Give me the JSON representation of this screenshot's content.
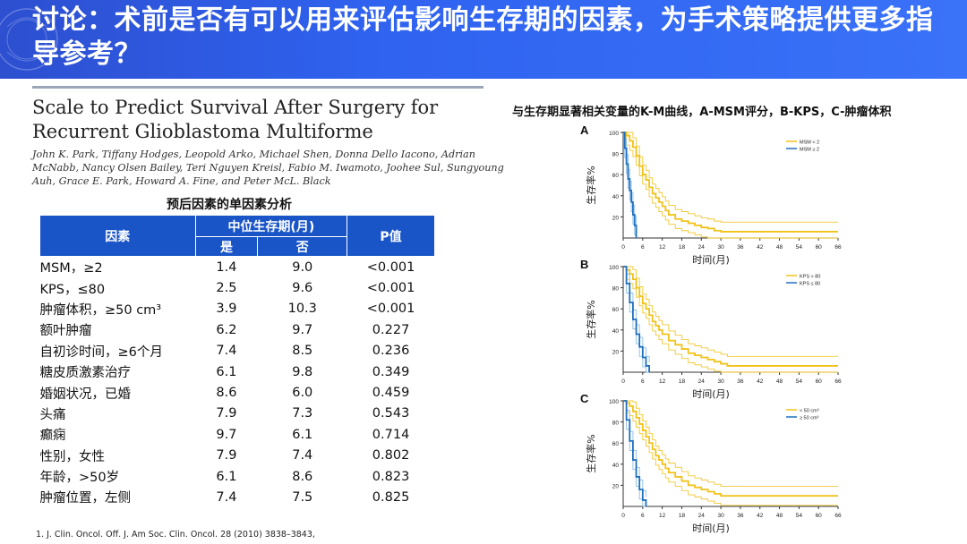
{
  "banner": {
    "title": "讨论：术前是否有可以用来评估影响生存期的因素，为手术策略提供更多指导参考？"
  },
  "paper": {
    "title": "Scale to Predict Survival After Surgery for Recurrent Glioblastoma Multiforme",
    "authors": "John K. Park, Tiffany Hodges, Leopold Arko, Michael Shen, Donna Dello Iacono, Adrian McNabb, Nancy Olsen Bailey, Teri Nguyen Kreisl, Fabio M. Iwamoto, Joohee Sul, Sungyoung Auh, Grace E. Park, Howard A. Fine, and Peter McL. Black"
  },
  "table": {
    "title": "预后因素的单因素分析",
    "col_factor": "因素",
    "col_median": "中位生存期(月)",
    "col_yes": "是",
    "col_no": "否",
    "col_p": "P值",
    "rows": [
      {
        "factor": "MSM，≥2",
        "yes": "1.4",
        "no": "9.0",
        "p": "<0.001"
      },
      {
        "factor": "KPS，≤80",
        "yes": "2.5",
        "no": "9.6",
        "p": "<0.001"
      },
      {
        "factor": "肿瘤体积，≥50 cm³",
        "yes": "3.9",
        "no": "10.3",
        "p": "<0.001"
      },
      {
        "factor": "额叶肿瘤",
        "yes": "6.2",
        "no": "9.7",
        "p": "0.227"
      },
      {
        "factor": "自初诊时间，≥6个月",
        "yes": "7.4",
        "no": "8.5",
        "p": "0.236"
      },
      {
        "factor": "糖皮质激素治疗",
        "yes": "6.1",
        "no": "9.8",
        "p": "0.349"
      },
      {
        "factor": "婚姻状况，已婚",
        "yes": "8.6",
        "no": "6.0",
        "p": "0.459"
      },
      {
        "factor": "头痛",
        "yes": "7.9",
        "no": "7.3",
        "p": "0.543"
      },
      {
        "factor": "癫痫",
        "yes": "9.7",
        "no": "6.1",
        "p": "0.714"
      },
      {
        "factor": "性别，女性",
        "yes": "7.9",
        "no": "7.4",
        "p": "0.802"
      },
      {
        "factor": "年龄，>50岁",
        "yes": "6.1",
        "no": "8.6",
        "p": "0.823"
      },
      {
        "factor": "肿瘤位置，左侧",
        "yes": "7.4",
        "no": "7.5",
        "p": "0.825"
      }
    ]
  },
  "reference": "1.   J. Clin. Oncol. Off. J. Am Soc. Clin. Oncol. 28 (2010) 3838–3843,",
  "km": {
    "title": "与生存期显著相关变量的K-M曲线，A-MSM评分，B-KPS，C-肿瘤体积",
    "ylabel": "生存率%",
    "xlabel": "时间(月)",
    "colors": {
      "yellow": "#f2c21a",
      "blue": "#1f6fbf",
      "lightblue": "#7fb8e6"
    },
    "x_ticks": [
      "0",
      "6",
      "12",
      "18",
      "24",
      "30",
      "36",
      "42",
      "48",
      "54",
      "60",
      "66"
    ],
    "y_ticks": [
      "100",
      "80",
      "60",
      "40",
      "20"
    ]
  },
  "chart_data": [
    {
      "type": "line",
      "panel": "A",
      "xlim": [
        0,
        66
      ],
      "ylim": [
        0,
        100
      ],
      "legend": [
        "MSM < 2",
        "MSM ≥ 2"
      ],
      "series": [
        {
          "name": "MSM < 2",
          "x": [
            0,
            1,
            2,
            3,
            4,
            5,
            6,
            7,
            8,
            9,
            10,
            11,
            12,
            13,
            14,
            16,
            18,
            20,
            22,
            24,
            26,
            28,
            30,
            66
          ],
          "values": [
            100,
            97,
            92,
            86,
            78,
            68,
            60,
            55,
            48,
            42,
            38,
            34,
            30,
            26,
            22,
            18,
            16,
            14,
            12,
            10,
            9,
            7,
            6,
            6
          ]
        },
        {
          "name": "MSM ≥ 2",
          "x": [
            0,
            0.5,
            1,
            1.5,
            2,
            2.5,
            3,
            3.5,
            4
          ],
          "values": [
            100,
            85,
            70,
            56,
            45,
            34,
            22,
            12,
            0
          ]
        }
      ]
    },
    {
      "type": "line",
      "panel": "B",
      "xlim": [
        0,
        66
      ],
      "ylim": [
        0,
        100
      ],
      "legend": [
        "KPS > 80",
        "KPS ≤ 80"
      ],
      "series": [
        {
          "name": "KPS > 80",
          "x": [
            0,
            1,
            2,
            3,
            4,
            5,
            6,
            7,
            8,
            9,
            10,
            11,
            12,
            14,
            16,
            18,
            20,
            22,
            24,
            26,
            28,
            30,
            32,
            66
          ],
          "values": [
            100,
            97,
            93,
            88,
            80,
            72,
            65,
            60,
            54,
            48,
            44,
            40,
            36,
            30,
            26,
            22,
            18,
            16,
            14,
            12,
            10,
            8,
            6,
            6
          ]
        },
        {
          "name": "KPS ≤ 80",
          "x": [
            0,
            1,
            2,
            3,
            4,
            5,
            6,
            7,
            8
          ],
          "values": [
            100,
            84,
            66,
            50,
            36,
            24,
            14,
            6,
            0
          ]
        }
      ]
    },
    {
      "type": "line",
      "panel": "C",
      "xlim": [
        0,
        66
      ],
      "ylim": [
        0,
        100
      ],
      "legend": [
        "< 50 cm³",
        "≥ 50 cm³"
      ],
      "series": [
        {
          "name": "< 50 cm³",
          "x": [
            0,
            1,
            2,
            3,
            4,
            5,
            6,
            7,
            8,
            9,
            10,
            11,
            12,
            13,
            14,
            16,
            18,
            20,
            22,
            24,
            26,
            28,
            30,
            66
          ],
          "values": [
            100,
            98,
            95,
            90,
            84,
            78,
            72,
            66,
            60,
            54,
            48,
            44,
            40,
            36,
            32,
            28,
            24,
            20,
            18,
            16,
            14,
            12,
            10,
            10
          ]
        },
        {
          "name": "≥ 50 cm³",
          "x": [
            0,
            1,
            2,
            3,
            4,
            5,
            6,
            7
          ],
          "values": [
            100,
            82,
            62,
            44,
            28,
            16,
            6,
            0
          ]
        }
      ]
    }
  ]
}
